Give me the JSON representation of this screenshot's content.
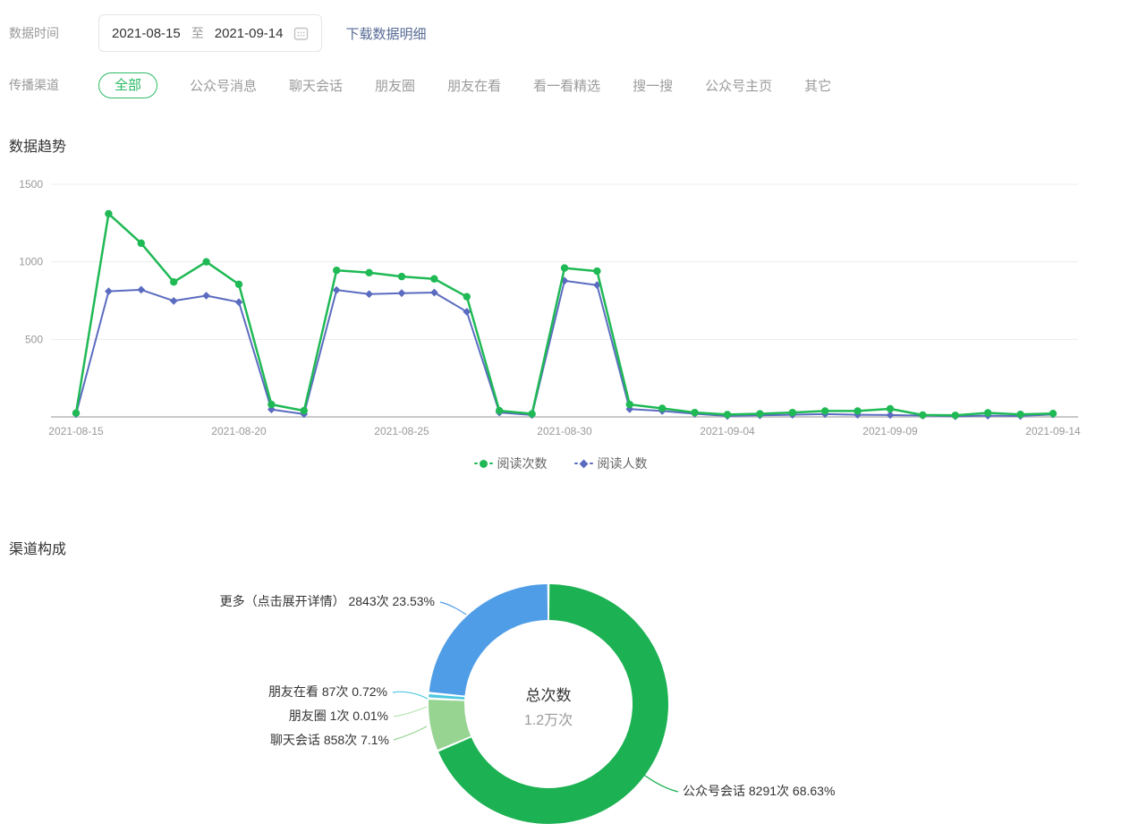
{
  "header": {
    "label": "数据时间",
    "date_start": "2021-08-15",
    "separator": "至",
    "date_end": "2021-09-14",
    "download_label": "下载数据明细"
  },
  "channels": {
    "label": "传播渠道",
    "active": "全部",
    "tabs": [
      "全部",
      "公众号消息",
      "聊天会话",
      "朋友圈",
      "朋友在看",
      "看一看精选",
      "搜一搜",
      "公众号主页",
      "其它"
    ]
  },
  "trend_section": {
    "title": "数据趋势"
  },
  "composition_section": {
    "title": "渠道构成"
  },
  "colors": {
    "link_blue": "#576b95",
    "active_tab_green": "#26b962",
    "axis_text": "#999999",
    "gridline": "#ececec",
    "baseline": "#c8c8c8"
  },
  "chart_data": [
    {
      "type": "line",
      "title": "数据趋势",
      "x": [
        "2021-08-15",
        "2021-08-16",
        "2021-08-17",
        "2021-08-18",
        "2021-08-19",
        "2021-08-20",
        "2021-08-21",
        "2021-08-22",
        "2021-08-23",
        "2021-08-24",
        "2021-08-25",
        "2021-08-26",
        "2021-08-27",
        "2021-08-28",
        "2021-08-29",
        "2021-08-30",
        "2021-08-31",
        "2021-09-01",
        "2021-09-02",
        "2021-09-03",
        "2021-09-04",
        "2021-09-05",
        "2021-09-06",
        "2021-09-07",
        "2021-09-08",
        "2021-09-09",
        "2021-09-10",
        "2021-09-11",
        "2021-09-12",
        "2021-09-13",
        "2021-09-14"
      ],
      "series": [
        {
          "name": "阅读次数",
          "color": "#1fb955",
          "marker": "circle",
          "values": [
            25,
            1310,
            1120,
            870,
            1000,
            855,
            80,
            40,
            945,
            930,
            905,
            890,
            775,
            40,
            20,
            960,
            940,
            80,
            55,
            28,
            15,
            20,
            28,
            38,
            38,
            52,
            12,
            10,
            26,
            16,
            22
          ]
        },
        {
          "name": "阅读人数",
          "color": "#5b6cc0",
          "marker": "diamond",
          "values": [
            18,
            810,
            820,
            748,
            782,
            740,
            48,
            18,
            818,
            792,
            798,
            802,
            678,
            28,
            12,
            878,
            850,
            50,
            38,
            20,
            6,
            10,
            14,
            18,
            14,
            12,
            8,
            4,
            8,
            6,
            16
          ]
        }
      ],
      "xlabel": "",
      "ylabel": "",
      "ylim": [
        0,
        1500
      ],
      "yticks": [
        500,
        1000,
        1500
      ],
      "xtick_every": 5,
      "grid": true,
      "legend_position": "bottom"
    },
    {
      "type": "donut",
      "title": "渠道构成",
      "center": {
        "label": "总次数",
        "value": "1.2万次"
      },
      "slices": [
        {
          "name": "公众号会话",
          "count": "8291次",
          "percent": "68.63%",
          "value": 8291,
          "color": "#1cb152"
        },
        {
          "name": "聊天会话",
          "count": "858次",
          "percent": "7.1%",
          "value": 858,
          "color": "#97d492"
        },
        {
          "name": "朋友圈",
          "count": "1次",
          "percent": "0.01%",
          "value": 1,
          "color": "#b9e4b4"
        },
        {
          "name": "朋友在看",
          "count": "87次",
          "percent": "0.72%",
          "value": 87,
          "color": "#4cc8e0"
        },
        {
          "name": "更多（点击展开详情）",
          "count": "2843次",
          "percent": "23.53%",
          "value": 2843,
          "color": "#4f9de6"
        }
      ]
    }
  ]
}
